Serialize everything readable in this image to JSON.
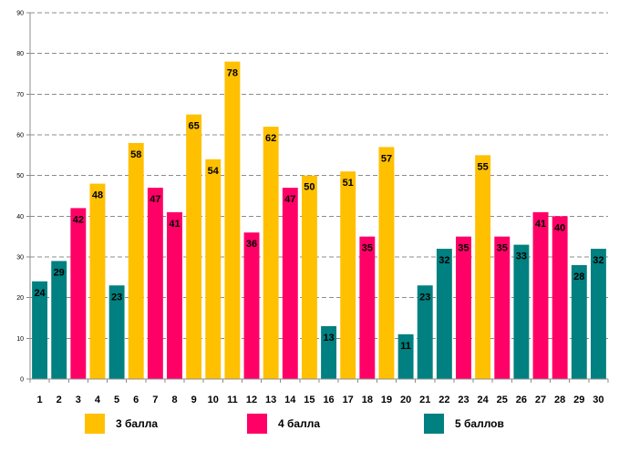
{
  "chart_data": {
    "type": "bar",
    "categories": [
      "1",
      "2",
      "3",
      "4",
      "5",
      "6",
      "7",
      "8",
      "9",
      "10",
      "11",
      "12",
      "13",
      "14",
      "15",
      "16",
      "17",
      "18",
      "19",
      "20",
      "21",
      "22",
      "23",
      "24",
      "25",
      "26",
      "27",
      "28",
      "29",
      "30"
    ],
    "values": [
      24,
      29,
      42,
      48,
      23,
      58,
      47,
      41,
      65,
      54,
      78,
      36,
      62,
      47,
      50,
      13,
      51,
      35,
      57,
      11,
      23,
      32,
      35,
      55,
      35,
      33,
      41,
      40,
      28,
      32
    ],
    "groups": [
      2,
      2,
      1,
      0,
      2,
      0,
      1,
      1,
      0,
      0,
      0,
      1,
      0,
      1,
      0,
      2,
      0,
      1,
      0,
      2,
      2,
      2,
      1,
      0,
      1,
      2,
      1,
      1,
      2,
      2
    ],
    "series": [
      {
        "name": "3 балла",
        "color": "#FFC000"
      },
      {
        "name": "4 балла",
        "color": "#FF0066"
      },
      {
        "name": "5 баллов",
        "color": "#008080"
      }
    ],
    "ylim": [
      0,
      90
    ],
    "yticks": [
      "0",
      "10",
      "20",
      "30",
      "40",
      "50",
      "60",
      "70",
      "80",
      "90"
    ],
    "grid": true,
    "legend_position": "bottom",
    "title": "",
    "xlabel": "",
    "ylabel": ""
  }
}
